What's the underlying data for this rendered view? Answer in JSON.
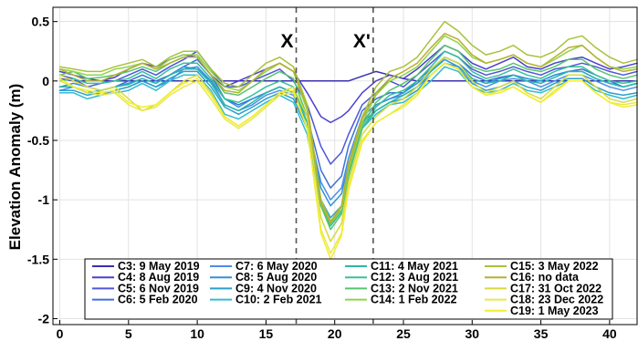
{
  "chart_data": {
    "type": "line",
    "title": "",
    "xlabel": "",
    "ylabel": "Elevation Anomaly (m)",
    "xlim": [
      -0.5,
      42
    ],
    "ylim": [
      -2.05,
      0.62
    ],
    "xticks": [
      0,
      5,
      10,
      15,
      20,
      25,
      30,
      35,
      40
    ],
    "yticks": [
      0.5,
      0,
      -0.5,
      -1,
      -1.5,
      -2
    ],
    "ytick_labels": [
      "0.5",
      "0",
      "-0.5",
      "-1",
      "-1.5",
      "-2"
    ],
    "grid": true,
    "legend_position": "bottom-center",
    "markers": [
      {
        "label": "X",
        "x": 17.2
      },
      {
        "label": "X'",
        "x": 22.8
      }
    ],
    "x": [
      0,
      1,
      2,
      3,
      4,
      5,
      6,
      7,
      8,
      9,
      10,
      11,
      12,
      13,
      14,
      15,
      16,
      17,
      18,
      19,
      19.7,
      20.5,
      21,
      22,
      23,
      24,
      25,
      26,
      27,
      28,
      29,
      30,
      31,
      32,
      33,
      34,
      35,
      36,
      37,
      38,
      39,
      40,
      41,
      42
    ],
    "series": [
      {
        "name": "C3: 9 May 2019",
        "color": "#3b2fb0",
        "values": [
          0.02,
          0.0,
          0.0,
          0.0,
          0.0,
          0.0,
          0.0,
          0.0,
          0.0,
          0.0,
          0.0,
          0.0,
          0.0,
          0.0,
          0.0,
          0.0,
          0.0,
          0.0,
          0.0,
          0.0,
          0.0,
          0.0,
          0.0,
          0.04,
          0.08,
          0.05,
          0.02,
          0.0,
          0.0,
          0.0,
          0.0,
          0.0,
          0.0,
          0.0,
          0.0,
          0.0,
          0.0,
          0.0,
          0.0,
          0.0,
          0.0,
          0.0,
          0.0,
          0.0
        ]
      },
      {
        "name": "C4: 8 Aug 2019",
        "color": "#4a3fd0",
        "values": [
          0.08,
          0.05,
          0.02,
          0.0,
          0.03,
          0.1,
          0.15,
          0.12,
          0.18,
          0.22,
          0.2,
          0.05,
          -0.05,
          0.0,
          0.05,
          0.1,
          0.15,
          0.08,
          -0.1,
          -0.3,
          -0.35,
          -0.3,
          -0.25,
          -0.1,
          0.0,
          0.05,
          0.02,
          0.1,
          0.2,
          0.3,
          0.25,
          0.15,
          0.1,
          0.15,
          0.2,
          0.12,
          0.1,
          0.15,
          0.18,
          0.2,
          0.15,
          0.1,
          0.12,
          0.15
        ]
      },
      {
        "name": "C5: 6 Nov 2019",
        "color": "#4f56d8",
        "values": [
          0.05,
          0.02,
          -0.05,
          -0.02,
          0.0,
          0.05,
          0.1,
          0.05,
          0.12,
          0.18,
          0.25,
          0.1,
          -0.05,
          -0.05,
          0.0,
          0.05,
          0.1,
          0.0,
          -0.2,
          -0.55,
          -0.7,
          -0.6,
          -0.45,
          -0.2,
          -0.1,
          0.0,
          -0.05,
          0.05,
          0.15,
          0.25,
          0.2,
          0.1,
          0.05,
          0.08,
          0.12,
          0.08,
          0.05,
          0.1,
          0.12,
          0.15,
          0.12,
          0.08,
          0.05,
          0.08
        ]
      },
      {
        "name": "C6: 5 Feb 2020",
        "color": "#3d6fd6",
        "values": [
          -0.05,
          -0.05,
          -0.1,
          -0.08,
          -0.05,
          0.0,
          0.05,
          0.0,
          0.05,
          0.12,
          0.18,
          0.05,
          -0.15,
          -0.2,
          -0.15,
          -0.1,
          -0.05,
          -0.1,
          -0.3,
          -0.75,
          -0.9,
          -0.8,
          -0.55,
          -0.25,
          -0.15,
          -0.1,
          -0.1,
          0.0,
          0.1,
          0.2,
          0.15,
          0.05,
          0.0,
          0.03,
          0.05,
          0.02,
          0.0,
          0.05,
          0.08,
          0.1,
          0.05,
          0.0,
          -0.05,
          -0.02
        ]
      },
      {
        "name": "C7: 6 May 2020",
        "color": "#4a8ee8",
        "values": [
          -0.08,
          -0.05,
          -0.1,
          -0.12,
          -0.08,
          -0.05,
          0.0,
          -0.05,
          0.0,
          0.1,
          0.12,
          0.0,
          -0.2,
          -0.25,
          -0.2,
          -0.12,
          -0.08,
          -0.12,
          -0.35,
          -0.85,
          -1.0,
          -0.9,
          -0.65,
          -0.3,
          -0.2,
          -0.15,
          -0.12,
          -0.05,
          0.05,
          0.15,
          0.12,
          0.0,
          -0.05,
          0.0,
          0.02,
          0.0,
          -0.05,
          0.0,
          0.05,
          0.05,
          0.0,
          -0.05,
          -0.08,
          -0.05
        ]
      },
      {
        "name": "C8: 5 Aug 2020",
        "color": "#2f93d8",
        "values": [
          -0.05,
          -0.02,
          -0.05,
          -0.08,
          -0.05,
          -0.02,
          0.02,
          -0.02,
          0.05,
          0.12,
          0.1,
          0.0,
          -0.15,
          -0.22,
          -0.15,
          -0.1,
          -0.05,
          -0.1,
          -0.35,
          -0.9,
          -1.05,
          -0.95,
          -0.7,
          -0.35,
          -0.2,
          -0.15,
          -0.1,
          -0.02,
          0.08,
          0.18,
          0.12,
          0.02,
          -0.02,
          0.02,
          0.05,
          0.02,
          0.0,
          0.05,
          0.08,
          0.08,
          0.02,
          -0.02,
          -0.05,
          -0.02
        ]
      },
      {
        "name": "C9: 4 Nov 2020",
        "color": "#2a9fce",
        "values": [
          -0.08,
          -0.08,
          -0.12,
          -0.1,
          -0.08,
          -0.05,
          0.0,
          -0.05,
          0.02,
          0.08,
          0.08,
          -0.05,
          -0.22,
          -0.28,
          -0.22,
          -0.15,
          -0.1,
          -0.15,
          -0.4,
          -1.0,
          -1.15,
          -1.05,
          -0.75,
          -0.35,
          -0.25,
          -0.18,
          -0.15,
          -0.08,
          0.05,
          0.15,
          0.1,
          -0.02,
          -0.08,
          -0.05,
          0.0,
          -0.05,
          -0.08,
          -0.02,
          0.02,
          0.02,
          -0.05,
          -0.1,
          -0.12,
          -0.1
        ]
      },
      {
        "name": "C10: 2 Feb 2021",
        "color": "#33bcd0",
        "values": [
          -0.1,
          -0.1,
          -0.15,
          -0.12,
          -0.1,
          -0.08,
          -0.02,
          -0.08,
          0.0,
          0.05,
          0.05,
          -0.08,
          -0.28,
          -0.32,
          -0.25,
          -0.18,
          -0.12,
          -0.18,
          -0.45,
          -1.05,
          -1.2,
          -1.1,
          -0.8,
          -0.4,
          -0.28,
          -0.2,
          -0.18,
          -0.1,
          0.0,
          0.12,
          0.08,
          -0.05,
          -0.1,
          -0.08,
          -0.02,
          -0.08,
          -0.1,
          -0.05,
          0.0,
          0.0,
          -0.08,
          -0.12,
          -0.15,
          -0.12
        ]
      },
      {
        "name": "C11: 4 May 2021",
        "color": "#2cb6a8",
        "values": [
          -0.05,
          -0.05,
          -0.1,
          -0.08,
          -0.05,
          -0.03,
          0.02,
          -0.02,
          0.05,
          0.1,
          0.1,
          -0.02,
          -0.2,
          -0.25,
          -0.18,
          -0.1,
          -0.05,
          -0.1,
          -0.4,
          -1.0,
          -1.18,
          -1.08,
          -0.78,
          -0.4,
          -0.25,
          -0.18,
          -0.12,
          -0.05,
          0.08,
          0.2,
          0.15,
          0.02,
          -0.02,
          0.0,
          0.05,
          0.0,
          -0.02,
          0.03,
          0.08,
          0.08,
          0.02,
          -0.02,
          -0.05,
          -0.02
        ]
      },
      {
        "name": "C12: 3 Aug 2021",
        "color": "#36c19a",
        "values": [
          0.0,
          0.02,
          -0.02,
          -0.02,
          0.0,
          0.02,
          0.08,
          0.02,
          0.1,
          0.15,
          0.15,
          0.02,
          -0.15,
          -0.18,
          -0.12,
          -0.05,
          0.0,
          -0.05,
          -0.35,
          -1.05,
          -1.22,
          -1.1,
          -0.8,
          -0.4,
          -0.22,
          -0.12,
          -0.08,
          0.0,
          0.12,
          0.25,
          0.2,
          0.08,
          0.02,
          0.05,
          0.1,
          0.05,
          0.02,
          0.08,
          0.12,
          0.12,
          0.05,
          0.0,
          -0.02,
          0.0
        ]
      },
      {
        "name": "C13: 2 Nov 2021",
        "color": "#56c56e",
        "values": [
          0.05,
          0.08,
          0.02,
          0.03,
          0.05,
          0.08,
          0.12,
          0.08,
          0.15,
          0.2,
          0.2,
          0.05,
          -0.1,
          -0.12,
          -0.05,
          0.02,
          0.08,
          0.02,
          -0.3,
          -1.05,
          -1.25,
          -1.12,
          -0.8,
          -0.38,
          -0.18,
          -0.08,
          -0.02,
          0.05,
          0.18,
          0.3,
          0.25,
          0.12,
          0.08,
          0.1,
          0.15,
          0.1,
          0.08,
          0.12,
          0.18,
          0.18,
          0.1,
          0.05,
          0.02,
          0.05
        ]
      },
      {
        "name": "C14: 1 Feb 2022",
        "color": "#8fd44c",
        "values": [
          0.1,
          0.08,
          0.05,
          0.05,
          0.1,
          0.12,
          0.15,
          0.1,
          0.18,
          0.22,
          0.22,
          0.08,
          -0.05,
          -0.08,
          0.0,
          0.08,
          0.15,
          0.08,
          -0.25,
          -1.02,
          -1.2,
          -1.08,
          -0.75,
          -0.35,
          -0.12,
          0.0,
          0.05,
          0.12,
          0.25,
          0.38,
          0.32,
          0.2,
          0.15,
          0.18,
          0.22,
          0.15,
          0.12,
          0.18,
          0.25,
          0.3,
          0.2,
          0.12,
          0.1,
          0.12
        ]
      },
      {
        "name": "C15: 3 May 2022",
        "color": "#a8c23a",
        "values": [
          0.12,
          0.1,
          0.08,
          0.08,
          0.12,
          0.15,
          0.18,
          0.12,
          0.2,
          0.25,
          0.25,
          0.1,
          -0.02,
          -0.05,
          0.05,
          0.15,
          0.2,
          0.12,
          -0.2,
          -1.0,
          -1.18,
          -1.05,
          -0.7,
          -0.3,
          -0.05,
          0.08,
          0.12,
          0.2,
          0.35,
          0.5,
          0.42,
          0.3,
          0.22,
          0.25,
          0.3,
          0.22,
          0.2,
          0.25,
          0.35,
          0.38,
          0.28,
          0.2,
          0.15,
          0.18
        ]
      },
      {
        "name": "C16: no data",
        "color": "#b8b030",
        "values": [
          0.1,
          0.05,
          0.0,
          0.0,
          0.05,
          0.1,
          0.15,
          0.1,
          0.15,
          0.2,
          0.2,
          0.05,
          -0.08,
          -0.1,
          0.0,
          0.1,
          0.15,
          0.08,
          -0.22,
          -1.02,
          -1.2,
          -1.05,
          -0.72,
          -0.32,
          -0.1,
          0.02,
          0.08,
          0.15,
          0.28,
          0.4,
          0.35,
          0.22,
          0.15,
          0.18,
          0.22,
          0.15,
          0.12,
          0.2,
          0.28,
          0.3,
          0.2,
          0.12,
          0.08,
          0.1
        ]
      },
      {
        "name": "C17: 31 Oct 2022",
        "color": "#d8da3a",
        "values": [
          0.05,
          0.0,
          -0.05,
          -0.08,
          -0.05,
          -0.15,
          -0.25,
          -0.2,
          -0.1,
          0.0,
          0.05,
          -0.1,
          -0.3,
          -0.38,
          -0.3,
          -0.2,
          -0.1,
          -0.05,
          -0.3,
          -1.15,
          -1.35,
          -1.2,
          -0.85,
          -0.45,
          -0.3,
          -0.2,
          -0.15,
          -0.05,
          0.1,
          0.2,
          0.15,
          0.0,
          -0.1,
          -0.05,
          0.0,
          -0.1,
          -0.15,
          -0.05,
          0.05,
          0.05,
          -0.05,
          -0.15,
          -0.18,
          -0.15
        ]
      },
      {
        "name": "C18: 23 Dec 2022",
        "color": "#e8e84a",
        "values": [
          0.0,
          -0.05,
          -0.1,
          -0.12,
          -0.1,
          -0.2,
          -0.25,
          -0.22,
          -0.12,
          -0.05,
          0.0,
          -0.15,
          -0.32,
          -0.4,
          -0.32,
          -0.22,
          -0.12,
          -0.1,
          -0.4,
          -1.25,
          -1.45,
          -1.28,
          -0.9,
          -0.5,
          -0.35,
          -0.28,
          -0.2,
          -0.1,
          0.05,
          0.15,
          0.1,
          -0.05,
          -0.12,
          -0.08,
          -0.05,
          -0.12,
          -0.18,
          -0.08,
          0.0,
          0.0,
          -0.1,
          -0.18,
          -0.2,
          -0.18
        ]
      },
      {
        "name": "C19: 1 May 2023",
        "color": "#f2ee2a",
        "values": [
          0.02,
          -0.05,
          -0.08,
          -0.1,
          -0.08,
          -0.18,
          -0.22,
          -0.2,
          -0.1,
          -0.02,
          0.02,
          -0.12,
          -0.3,
          -0.38,
          -0.3,
          -0.2,
          -0.1,
          -0.08,
          -0.4,
          -1.28,
          -1.5,
          -1.3,
          -0.92,
          -0.52,
          -0.35,
          -0.28,
          -0.22,
          -0.12,
          0.05,
          0.15,
          0.1,
          -0.05,
          -0.12,
          -0.1,
          -0.05,
          -0.12,
          -0.18,
          -0.1,
          0.0,
          0.0,
          -0.1,
          -0.18,
          -0.22,
          -0.2
        ]
      }
    ]
  }
}
